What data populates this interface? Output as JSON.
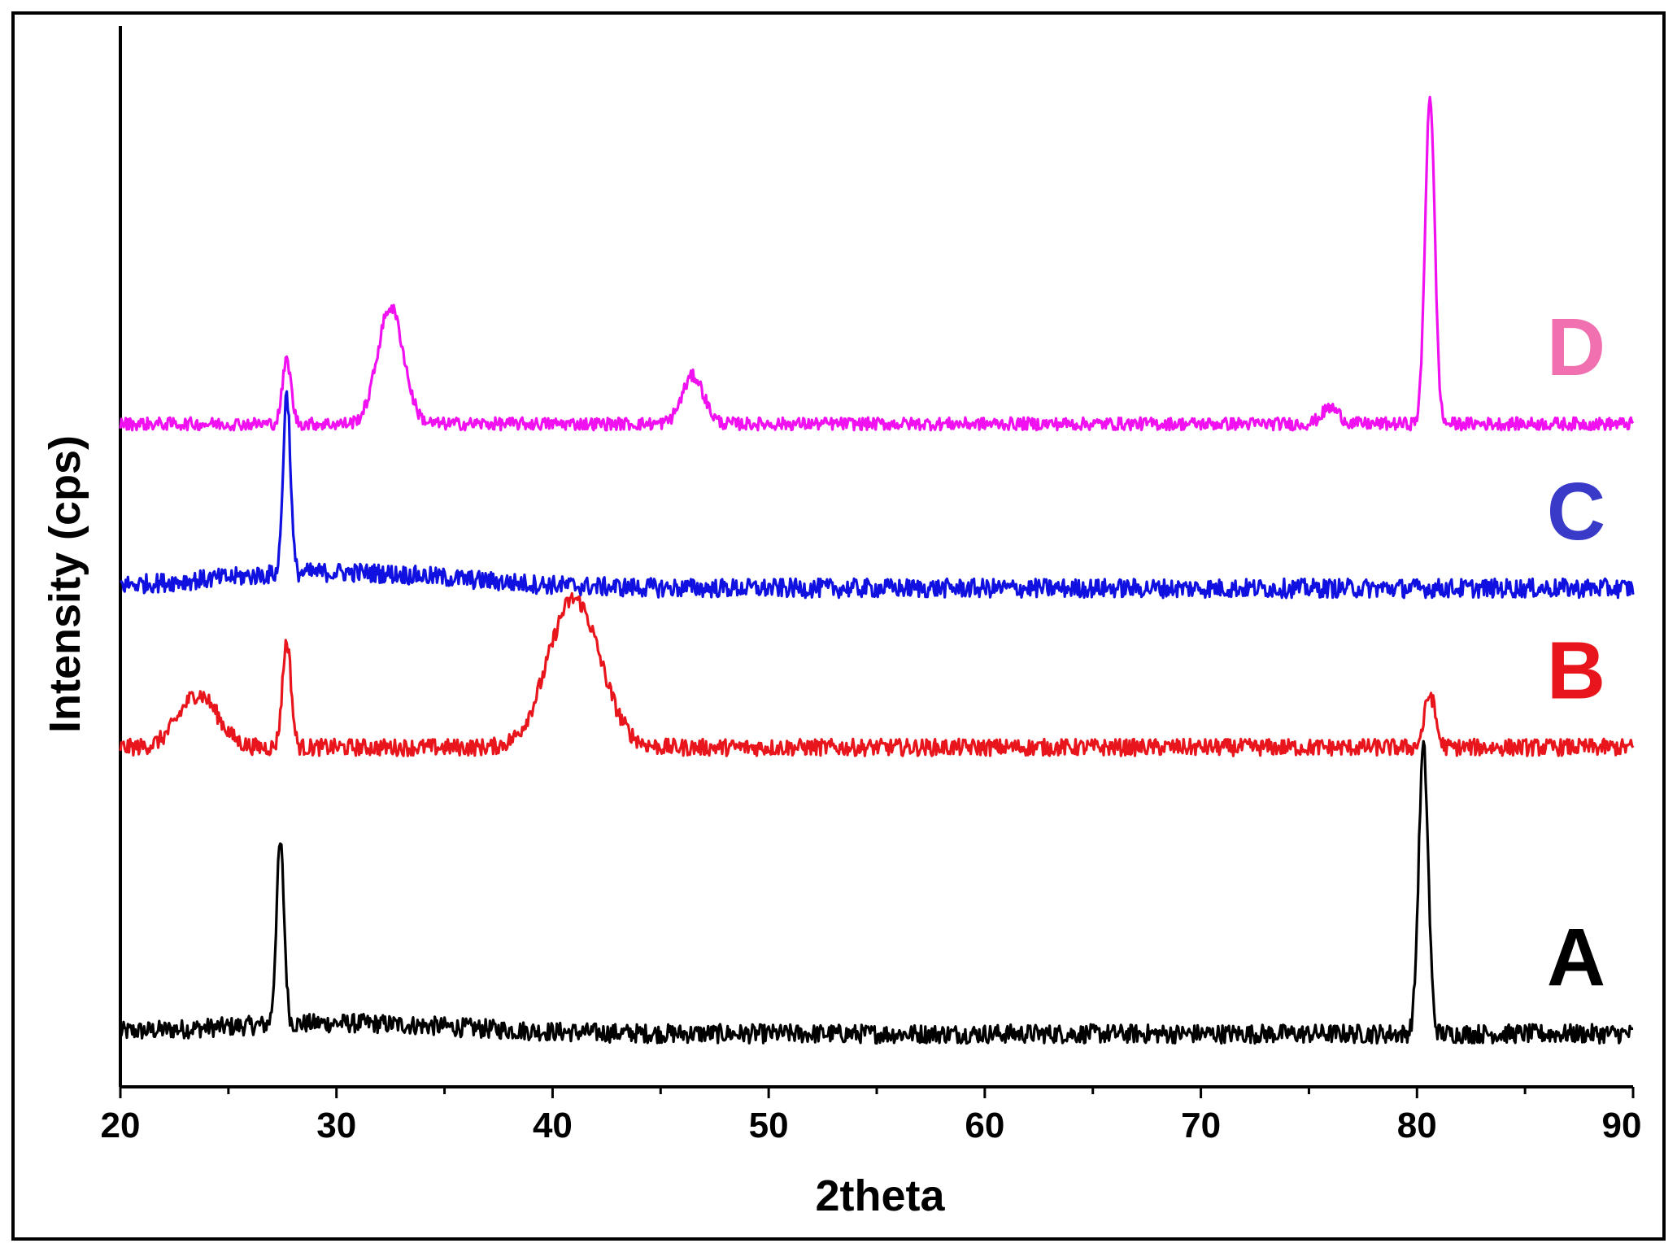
{
  "chart_data": {
    "type": "line",
    "xlabel": "2theta",
    "ylabel": "Intensity (cps)",
    "xlim": [
      20,
      90
    ],
    "ylim": [
      0,
      1
    ],
    "xticks": [
      20,
      30,
      40,
      50,
      60,
      70,
      80,
      90
    ],
    "grid": false,
    "legend": "labels placed at right end of each trace",
    "series": [
      {
        "name": "A",
        "color": "#000000",
        "baseline": 0.05,
        "peaks": [
          {
            "x": 27.4,
            "h": 0.17,
            "w": 0.18
          },
          {
            "x": 80.3,
            "h": 0.27,
            "w": 0.22
          }
        ],
        "background": 0.01,
        "noise": 0.009
      },
      {
        "name": "B",
        "color": "#e8161c",
        "baseline": 0.32,
        "peaks": [
          {
            "x": 23.6,
            "h": 0.05,
            "w": 0.9
          },
          {
            "x": 27.7,
            "h": 0.1,
            "w": 0.2
          },
          {
            "x": 41.0,
            "h": 0.14,
            "w": 1.2
          },
          {
            "x": 80.6,
            "h": 0.05,
            "w": 0.25
          }
        ],
        "background": 0.0,
        "noise": 0.008
      },
      {
        "name": "C",
        "color": "#1010e0",
        "baseline": 0.47,
        "peaks": [
          {
            "x": 27.7,
            "h": 0.17,
            "w": 0.17
          }
        ],
        "background": 0.015,
        "noise": 0.009
      },
      {
        "name": "D",
        "color": "#f010f0",
        "baseline": 0.625,
        "peaks": [
          {
            "x": 27.7,
            "h": 0.06,
            "w": 0.2
          },
          {
            "x": 32.5,
            "h": 0.11,
            "w": 0.6
          },
          {
            "x": 46.5,
            "h": 0.045,
            "w": 0.5
          },
          {
            "x": 76.0,
            "h": 0.015,
            "w": 0.4
          },
          {
            "x": 80.6,
            "h": 0.31,
            "w": 0.22
          }
        ],
        "background": 0.0,
        "noise": 0.006
      }
    ],
    "series_label_colors": {
      "A": "#000000",
      "B": "#e8161c",
      "C": "#3a3ac8",
      "D": "#f070b0"
    }
  }
}
